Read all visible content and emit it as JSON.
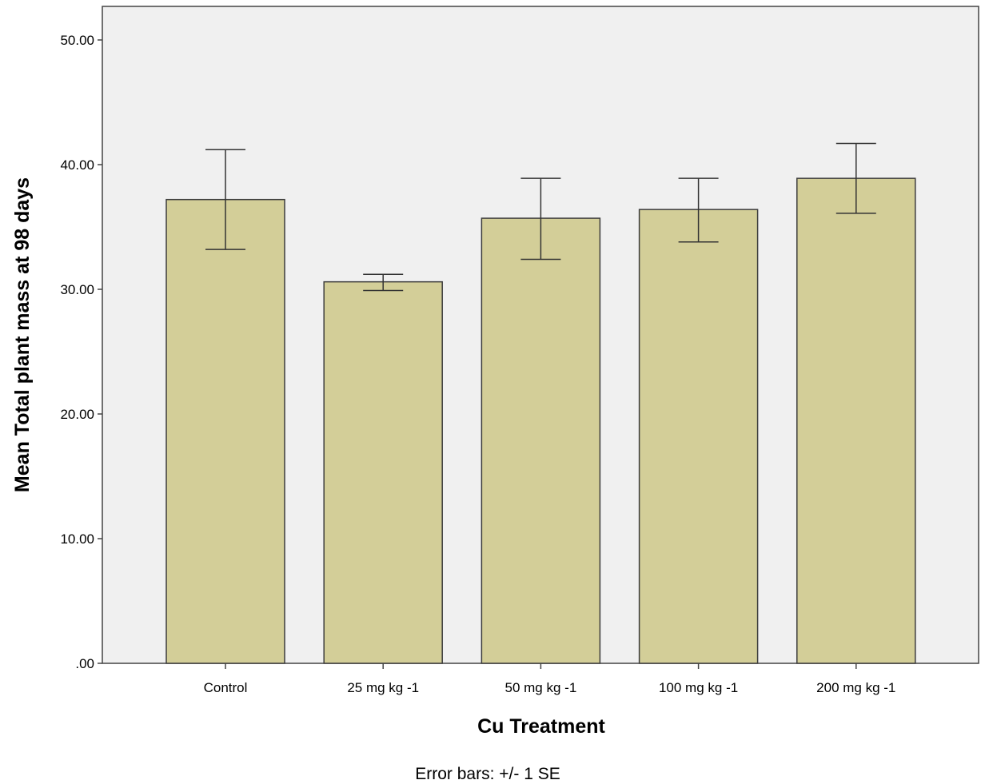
{
  "chart_data": {
    "type": "bar",
    "title": "",
    "xlabel": "Cu Treatment",
    "ylabel": "Mean Total plant mass at 98 days",
    "categories": [
      "Control",
      "25 mg kg -1",
      "50 mg kg -1",
      "100 mg kg -1",
      "200 mg kg -1"
    ],
    "values": [
      37.2,
      30.6,
      35.7,
      36.4,
      38.9
    ],
    "error_low": [
      33.2,
      29.9,
      32.4,
      33.8,
      36.1
    ],
    "error_high": [
      41.2,
      31.2,
      38.9,
      38.9,
      41.7
    ],
    "ylim": [
      0,
      52.5
    ],
    "yticks": [
      0,
      10,
      20,
      30,
      40,
      50
    ],
    "ytick_labels": [
      ".00",
      "10.00",
      "20.00",
      "30.00",
      "40.00",
      "50.00"
    ],
    "grid": false,
    "legend": "none",
    "note": "Error bars: +/- 1 SE",
    "colors": {
      "plot_background": "#f0f0f0",
      "bar_fill": "#d3ce98",
      "bar_stroke": "#3c3c3c",
      "axis": "#444444",
      "error_bar": "#333333"
    }
  }
}
